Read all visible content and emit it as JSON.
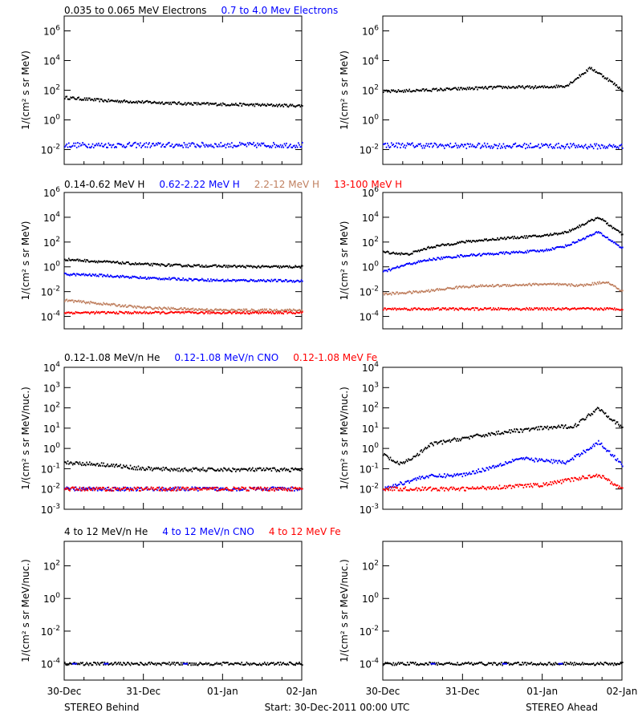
{
  "colors": {
    "black": "#000000",
    "blue": "#0000ff",
    "tan": "#c08060",
    "red": "#ff0000"
  },
  "rows": [
    {
      "legend": [
        {
          "text": "0.035 to 0.065 MeV Electrons",
          "color": "black"
        },
        {
          "text": "0.7 to 4.0 Mev Electrons",
          "color": "blue"
        }
      ],
      "ylabel": "1/(cm² s sr MeV)",
      "ticks": [
        {
          "m": "10",
          "e": "6"
        },
        {
          "m": "10",
          "e": "4"
        },
        {
          "m": "10",
          "e": "2"
        },
        {
          "m": "10",
          "e": "0"
        },
        {
          "m": "10",
          "e": "-2"
        }
      ]
    },
    {
      "legend": [
        {
          "text": "0.14-0.62 MeV H",
          "color": "black"
        },
        {
          "text": "0.62-2.22 MeV H",
          "color": "blue"
        },
        {
          "text": "2.2-12 MeV H",
          "color": "tan"
        },
        {
          "text": "13-100 MeV H",
          "color": "red"
        }
      ],
      "ylabel": "1/(cm² s sr MeV)",
      "ticks": [
        {
          "m": "10",
          "e": "6"
        },
        {
          "m": "10",
          "e": "4"
        },
        {
          "m": "10",
          "e": "2"
        },
        {
          "m": "10",
          "e": "0"
        },
        {
          "m": "10",
          "e": "-2"
        },
        {
          "m": "10",
          "e": "-4"
        }
      ]
    },
    {
      "legend": [
        {
          "text": "0.12-1.08 MeV/n He",
          "color": "black"
        },
        {
          "text": "0.12-1.08 MeV/n CNO",
          "color": "blue"
        },
        {
          "text": "0.12-1.08 MeV Fe",
          "color": "red"
        }
      ],
      "ylabel": "1/(cm² s sr MeV/nuc.)",
      "ticks": [
        {
          "m": "10",
          "e": "4"
        },
        {
          "m": "10",
          "e": "3"
        },
        {
          "m": "10",
          "e": "2"
        },
        {
          "m": "10",
          "e": "1"
        },
        {
          "m": "10",
          "e": "0"
        },
        {
          "m": "10",
          "e": "-1"
        },
        {
          "m": "10",
          "e": "-2"
        },
        {
          "m": "10",
          "e": "-3"
        }
      ]
    },
    {
      "legend": [
        {
          "text": "4 to 12 MeV/n He",
          "color": "black"
        },
        {
          "text": "4 to 12 MeV/n CNO",
          "color": "blue"
        },
        {
          "text": "4 to 12 MeV Fe",
          "color": "red"
        }
      ],
      "ylabel": "1/(cm² s sr MeV/nuc.)",
      "ticks": [
        {
          "m": "10",
          "e": "2"
        },
        {
          "m": "10",
          "e": "0"
        },
        {
          "m": "10",
          "e": "-2"
        },
        {
          "m": "10",
          "e": "-4"
        }
      ]
    }
  ],
  "footer": {
    "left": "STEREO Behind",
    "center": "Start: 30-Dec-2011 00:00 UTC",
    "right": "STEREO Ahead"
  },
  "x_ticks": [
    "30-Dec",
    "31-Dec",
    "01-Jan",
    "02-Jan"
  ],
  "chart_data": [
    {
      "type": "scatter",
      "spacecraft": "STEREO Behind",
      "panel": "electrons",
      "x_days": [
        0,
        3
      ],
      "ylim_log10": [
        -3,
        7
      ],
      "series": [
        {
          "name": "0.035 to 0.065 MeV Electrons",
          "color": "black",
          "x": [
            0,
            0.5,
            1,
            1.5,
            2,
            2.5,
            3
          ],
          "y_log10": [
            1.5,
            1.3,
            1.2,
            1.1,
            1.05,
            1.0,
            0.95
          ]
        },
        {
          "name": "0.7 to 4.0 Mev Electrons",
          "color": "blue",
          "x": [
            0,
            1,
            2,
            3
          ],
          "y_log10": [
            -1.7,
            -1.7,
            -1.7,
            -1.7
          ]
        }
      ]
    },
    {
      "type": "scatter",
      "spacecraft": "STEREO Ahead",
      "panel": "electrons",
      "x_days": [
        0,
        3
      ],
      "ylim_log10": [
        -3,
        7
      ],
      "series": [
        {
          "name": "0.035 to 0.065 MeV Electrons",
          "color": "black",
          "x": [
            0,
            0.5,
            1,
            1.5,
            2,
            2.3,
            2.6,
            2.8,
            3
          ],
          "y_log10": [
            1.9,
            2.0,
            2.1,
            2.2,
            2.2,
            2.3,
            3.5,
            2.8,
            2.0
          ]
        },
        {
          "name": "0.7 to 4.0 Mev Electrons",
          "color": "blue",
          "x": [
            0,
            1,
            2,
            3
          ],
          "y_log10": [
            -1.7,
            -1.75,
            -1.75,
            -1.8
          ]
        }
      ]
    },
    {
      "type": "scatter",
      "spacecraft": "STEREO Behind",
      "panel": "H",
      "x_days": [
        0,
        3
      ],
      "ylim_log10": [
        -5,
        6
      ],
      "series": [
        {
          "name": "0.14-0.62 MeV H",
          "color": "black",
          "x": [
            0,
            0.5,
            1,
            1.5,
            2,
            2.5,
            3
          ],
          "y_log10": [
            0.6,
            0.4,
            0.2,
            0.1,
            0.05,
            0.0,
            0.0
          ]
        },
        {
          "name": "0.62-2.22 MeV H",
          "color": "blue",
          "x": [
            0,
            0.5,
            1,
            1.5,
            2,
            2.5,
            3
          ],
          "y_log10": [
            -0.6,
            -0.7,
            -0.9,
            -1.0,
            -1.1,
            -1.1,
            -1.15
          ]
        },
        {
          "name": "2.2-12 MeV H",
          "color": "tan",
          "x": [
            0,
            0.5,
            1,
            1.5,
            2,
            2.5,
            3
          ],
          "y_log10": [
            -2.7,
            -3.0,
            -3.3,
            -3.4,
            -3.5,
            -3.5,
            -3.5
          ]
        },
        {
          "name": "13-100 MeV H",
          "color": "red",
          "x": [
            0,
            1,
            2,
            3
          ],
          "y_log10": [
            -3.7,
            -3.7,
            -3.7,
            -3.7
          ]
        }
      ]
    },
    {
      "type": "scatter",
      "spacecraft": "STEREO Ahead",
      "panel": "H",
      "x_days": [
        0,
        3
      ],
      "ylim_log10": [
        -5,
        6
      ],
      "series": [
        {
          "name": "0.14-0.62 MeV H",
          "color": "black",
          "x": [
            0,
            0.3,
            0.6,
            1,
            1.5,
            2,
            2.3,
            2.7,
            3
          ],
          "y_log10": [
            1.2,
            1.0,
            1.6,
            2.0,
            2.3,
            2.5,
            2.8,
            4.0,
            2.6
          ]
        },
        {
          "name": "0.62-2.22 MeV H",
          "color": "blue",
          "x": [
            0,
            0.3,
            0.6,
            1,
            1.5,
            2,
            2.3,
            2.7,
            3
          ],
          "y_log10": [
            -0.4,
            0.2,
            0.6,
            0.9,
            1.1,
            1.3,
            1.7,
            2.8,
            1.5
          ]
        },
        {
          "name": "2.2-12 MeV H",
          "color": "tan",
          "x": [
            0,
            0.5,
            1,
            1.5,
            2,
            2.5,
            2.8,
            3
          ],
          "y_log10": [
            -2.2,
            -2.0,
            -1.6,
            -1.5,
            -1.4,
            -1.5,
            -1.2,
            -2.0
          ]
        },
        {
          "name": "13-100 MeV H",
          "color": "red",
          "x": [
            0,
            1,
            2,
            3
          ],
          "y_log10": [
            -3.4,
            -3.4,
            -3.4,
            -3.4
          ]
        }
      ]
    },
    {
      "type": "scatter",
      "spacecraft": "STEREO Behind",
      "panel": "suprathermal",
      "x_days": [
        0,
        3
      ],
      "ylim_log10": [
        -3,
        4
      ],
      "series": [
        {
          "name": "0.12-1.08 MeV/n He",
          "color": "black",
          "x": [
            0,
            0.5,
            1,
            1.5,
            2,
            2.5,
            3
          ],
          "y_log10": [
            -0.7,
            -0.8,
            -1.0,
            -1.05,
            -1.05,
            -1.05,
            -1.05
          ]
        },
        {
          "name": "0.12-1.08 MeV/n CNO",
          "color": "blue",
          "x": [
            0,
            1,
            2,
            3
          ],
          "y_log10": [
            -2.0,
            -2.0,
            -2.0,
            -2.0
          ]
        },
        {
          "name": "0.12-1.08 MeV Fe",
          "color": "red",
          "x": [
            0,
            1,
            2,
            3
          ],
          "y_log10": [
            -2.0,
            -2.0,
            -2.0,
            -2.0
          ]
        }
      ]
    },
    {
      "type": "scatter",
      "spacecraft": "STEREO Ahead",
      "panel": "suprathermal",
      "x_days": [
        0,
        3
      ],
      "ylim_log10": [
        -3,
        4
      ],
      "series": [
        {
          "name": "0.12-1.08 MeV/n He",
          "color": "black",
          "x": [
            0,
            0.2,
            0.4,
            0.6,
            1,
            1.5,
            2,
            2.4,
            2.7,
            3
          ],
          "y_log10": [
            -0.3,
            -0.8,
            -0.4,
            0.2,
            0.5,
            0.8,
            1.0,
            1.1,
            2.0,
            1.0
          ]
        },
        {
          "name": "0.12-1.08 MeV/n CNO",
          "color": "blue",
          "x": [
            0,
            0.5,
            1,
            1.3,
            1.7,
            2,
            2.3,
            2.7,
            3
          ],
          "y_log10": [
            -2.0,
            -1.4,
            -1.3,
            -1.0,
            -0.5,
            -0.6,
            -0.7,
            0.3,
            -0.8
          ]
        },
        {
          "name": "0.12-1.08 MeV Fe",
          "color": "red",
          "x": [
            0,
            1,
            2,
            2.7,
            3
          ],
          "y_log10": [
            -2.0,
            -2.0,
            -1.8,
            -1.3,
            -2.0
          ]
        }
      ]
    },
    {
      "type": "scatter",
      "spacecraft": "STEREO Behind",
      "panel": "energetic",
      "x_days": [
        0,
        3
      ],
      "ylim_log10": [
        -5,
        3.5
      ],
      "series": [
        {
          "name": "4 to 12 MeV/n He",
          "color": "black",
          "x": [
            0,
            0.5,
            1,
            1.5,
            2,
            2.5,
            3
          ],
          "y_log10": [
            -4,
            -4,
            -4,
            -4,
            -4,
            -4,
            -4
          ]
        },
        {
          "name": "4 to 12 MeV/n CNO",
          "color": "blue",
          "x": [
            0.1,
            0.5,
            1.5
          ],
          "y_log10": [
            -4,
            -4,
            -4
          ]
        },
        {
          "name": "4 to 12 MeV Fe",
          "color": "red",
          "x": [],
          "y_log10": []
        }
      ]
    },
    {
      "type": "scatter",
      "spacecraft": "STEREO Ahead",
      "panel": "energetic",
      "x_days": [
        0,
        3
      ],
      "ylim_log10": [
        -5,
        3.5
      ],
      "series": [
        {
          "name": "4 to 12 MeV/n He",
          "color": "black",
          "x": [
            0,
            0.5,
            1,
            1.5,
            2,
            2.5,
            3
          ],
          "y_log10": [
            -4,
            -4,
            -4,
            -4,
            -4,
            -4,
            -4
          ]
        },
        {
          "name": "4 to 12 MeV/n CNO",
          "color": "blue",
          "x": [
            0.6,
            1.5,
            2.2
          ],
          "y_log10": [
            -4,
            -4,
            -4
          ]
        },
        {
          "name": "4 to 12 MeV Fe",
          "color": "red",
          "x": [],
          "y_log10": []
        }
      ]
    }
  ]
}
